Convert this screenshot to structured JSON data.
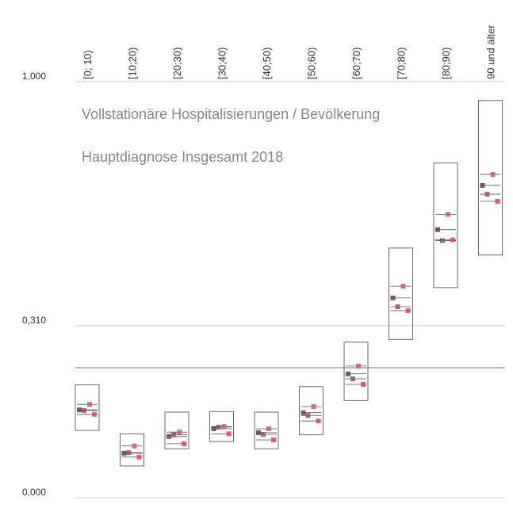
{
  "chart_data": {
    "type": "range_dots",
    "title": "Vollstationäre Hospitalisierungen / Bevölkerung",
    "subtitle": "Hauptdiagnose Insgesamt 2018",
    "categories": [
      "[0; 10)",
      "[10;20)",
      "[20;30)",
      "[30;40)",
      "[40;50)",
      "[50;60)",
      "[60;70)",
      "[70;80)",
      "[80;90)",
      "90 und älter"
    ],
    "box_low": [
      0.117,
      0.053,
      0.084,
      0.097,
      0.084,
      0.109,
      0.171,
      0.281,
      0.411,
      0.503
    ],
    "box_high": [
      0.199,
      0.111,
      0.15,
      0.151,
      0.15,
      0.196,
      0.276,
      0.523,
      0.763,
      0.94
    ],
    "series": [
      {
        "color": "#6e4a4e",
        "values": [
          0.154,
          0.076,
          0.106,
          0.12,
          0.113,
          0.149,
          0.219,
          0.382,
          0.575,
          0.7
        ]
      },
      {
        "color": "#9a5a64",
        "values": [
          0.153,
          0.077,
          0.109,
          0.123,
          0.11,
          0.144,
          0.21,
          0.357,
          0.544,
          0.675
        ]
      },
      {
        "color": "#c8646e",
        "values": [
          0.164,
          0.089,
          0.114,
          0.124,
          0.12,
          0.16,
          0.233,
          0.415,
          0.618,
          0.731
        ]
      },
      {
        "color": "#e0505a",
        "values": [
          0.146,
          0.069,
          0.093,
          0.111,
          0.1,
          0.134,
          0.2,
          0.346,
          0.546,
          0.655
        ]
      }
    ],
    "reference_line": 0.23,
    "ylim": [
      0,
      1
    ],
    "yticks": [
      {
        "value": 1,
        "label": "1,000"
      },
      {
        "value": 0.31,
        "label": "0,310"
      },
      {
        "value": 0,
        "label": "0,000"
      }
    ]
  }
}
